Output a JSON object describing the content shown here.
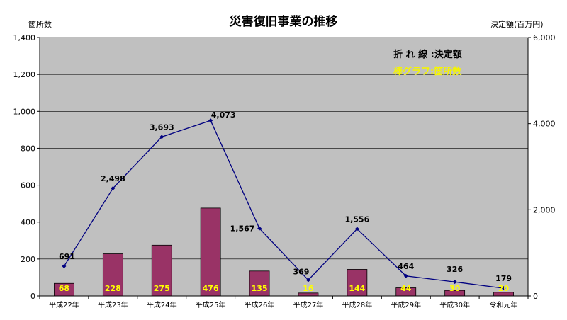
{
  "chart_data": {
    "type": "bar+line",
    "title": "災害復旧事業の推移",
    "ylabel_left": "箇所数",
    "ylabel_right": "決定額(百万円)",
    "categories": [
      "平成22年",
      "平成23年",
      "平成24年",
      "平成25年",
      "平成26年",
      "平成27年",
      "平成28年",
      "平成29年",
      "平成30年",
      "令和元年"
    ],
    "bar_series": {
      "name": "箇所数",
      "values": [
        68,
        228,
        275,
        476,
        135,
        16,
        144,
        44,
        30,
        20
      ],
      "data_labels": [
        "68",
        "228",
        "275",
        "476",
        "135",
        "16",
        "144",
        "44",
        "30",
        "20"
      ],
      "color": "#993366",
      "label_color": "#ffff00"
    },
    "line_series": {
      "name": "決定額",
      "values": [
        691,
        2498,
        3693,
        4073,
        1567,
        369,
        1556,
        464,
        326,
        179
      ],
      "data_labels": [
        "691",
        "2,498",
        "3,693",
        "4,073",
        "1,567",
        "369",
        "1,556",
        "464",
        "326",
        "179"
      ],
      "color": "#000080"
    },
    "y_left": {
      "range": [
        0,
        1400
      ],
      "ticks": [
        "0",
        "200",
        "400",
        "600",
        "800",
        "1,000",
        "1,200",
        "1,400"
      ]
    },
    "y_right": {
      "range": [
        0,
        6000
      ],
      "ticks": [
        "0",
        "2,000",
        "4,000",
        "6,000"
      ]
    },
    "legend": {
      "line_text": "折 れ 線 :決定額",
      "bar_text": "棒グラフ:箇所数",
      "placement": "top-right"
    },
    "grid": true,
    "plot_background": "#c0c0c0"
  }
}
